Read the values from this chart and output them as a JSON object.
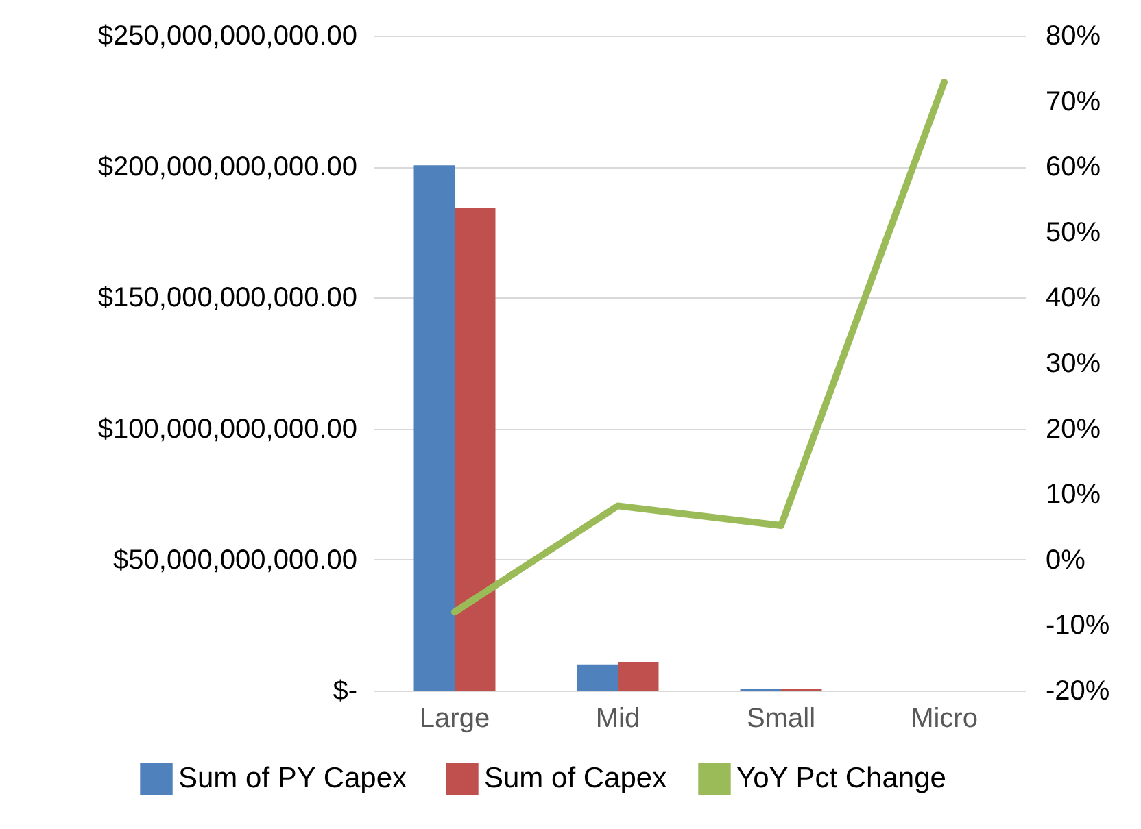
{
  "chart_data": {
    "type": "bar",
    "categories": [
      "Large",
      "Mid",
      "Small",
      "Micro"
    ],
    "series": [
      {
        "name": "Sum of PY  Capex",
        "color": "#4f81bd",
        "values": [
          200500000000,
          10000000000,
          500000000,
          null
        ]
      },
      {
        "name": "Sum of Capex",
        "color": "#c0504d",
        "values": [
          184300000000,
          11000000000,
          500000000,
          null
        ]
      },
      {
        "name": "YoY Pct Change",
        "type": "line",
        "axis": "y2",
        "color": "#9bbb59",
        "values": [
          -8,
          8.2,
          5.2,
          72.9
        ]
      }
    ],
    "ylim": [
      0,
      250000000000
    ],
    "yticks": [
      {
        "value": 0,
        "label": "$-"
      },
      {
        "value": 50000000000,
        "label": "$50,000,000,000.00"
      },
      {
        "value": 100000000000,
        "label": "$100,000,000,000.00"
      },
      {
        "value": 150000000000,
        "label": "$150,000,000,000.00"
      },
      {
        "value": 200000000000,
        "label": "$200,000,000,000.00"
      },
      {
        "value": 250000000000,
        "label": "$250,000,000,000.00"
      }
    ],
    "y2lim": [
      -20,
      80
    ],
    "y2ticks": [
      {
        "value": -20,
        "label": "-20%"
      },
      {
        "value": -10,
        "label": "-10%"
      },
      {
        "value": 0,
        "label": "0%"
      },
      {
        "value": 10,
        "label": "10%"
      },
      {
        "value": 20,
        "label": "20%"
      },
      {
        "value": 30,
        "label": "30%"
      },
      {
        "value": 40,
        "label": "40%"
      },
      {
        "value": 50,
        "label": "50%"
      },
      {
        "value": 60,
        "label": "60%"
      },
      {
        "value": 70,
        "label": "70%"
      },
      {
        "value": 80,
        "label": "80%"
      }
    ],
    "grid": "y",
    "legend": "bottom"
  }
}
